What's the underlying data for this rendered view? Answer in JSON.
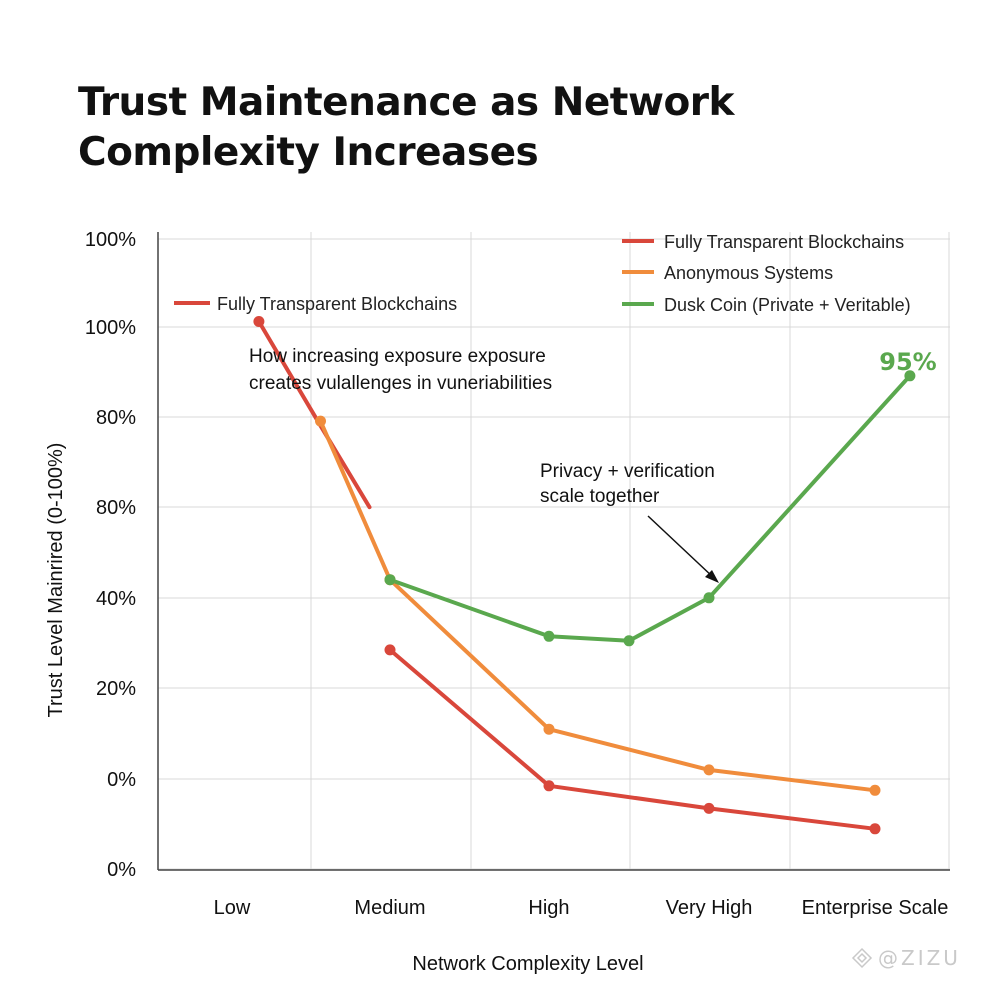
{
  "chart_data": {
    "type": "line",
    "title": "Trust Maintenance as Network Complexity Increases",
    "xlabel": "Network Complexity Level",
    "ylabel": "Trust Level Mainrired (0-100%)",
    "categories": [
      "Low",
      "Medium",
      "High",
      "Very High",
      "Enterprise Scale"
    ],
    "y_tick_labels": [
      "100%",
      "100%",
      "80%",
      "80%",
      "40%",
      "20%",
      "0%",
      "0%"
    ],
    "grid": true,
    "legend": {
      "placement": "top-right",
      "entries": [
        {
          "name": "Fully Transparent Blockchains",
          "color": "#d9473b"
        },
        {
          "name": "Anonymous Systems",
          "color": "#f08c3c"
        },
        {
          "name": "Dusk Coin (Private + Veritable)",
          "color": "#5aa84e"
        }
      ]
    },
    "extra_legend_label": {
      "name": "Fully Transparent Blockchains",
      "color": "#d9473b"
    },
    "series": [
      {
        "name": "Fully Transparent Blockchains",
        "color": "#d9473b",
        "segments": [
          {
            "points": [
              [
                0.17,
                101
              ],
              [
                0.56,
                78
              ],
              [
                0.87,
                60
              ]
            ],
            "markers": false,
            "first_marker": true
          },
          {
            "points": [
              [
                1.0,
                28.5
              ],
              [
                2.0,
                -1.5
              ],
              [
                3.0,
                -6.5
              ],
              [
                4.0,
                -11
              ]
            ],
            "markers": true
          }
        ]
      },
      {
        "name": "Anonymous Systems",
        "color": "#f08c3c",
        "segments": [
          {
            "points": [
              [
                0.56,
                79
              ],
              [
                1.0,
                44
              ],
              [
                2.0,
                11
              ],
              [
                3.0,
                2
              ],
              [
                4.0,
                -2.5
              ]
            ],
            "markers": true
          }
        ]
      },
      {
        "name": "Dusk Coin (Private + Veritable)",
        "color": "#5aa84e",
        "segments": [
          {
            "points": [
              [
                1.0,
                44
              ],
              [
                2.0,
                31.5
              ],
              [
                2.5,
                30.5
              ],
              [
                3.0,
                40
              ],
              [
                4.21,
                89
              ]
            ],
            "markers": true
          }
        ]
      }
    ],
    "annotations": [
      {
        "lines": [
          "How increasing exposure exposure",
          "creates vulallenges in vuneriabilities"
        ]
      },
      {
        "lines": [
          "Privacy + verification",
          "scale together"
        ],
        "arrow_to": [
          3.0,
          40
        ]
      },
      {
        "text": "95%",
        "color": "#5aa84e"
      }
    ]
  },
  "watermark": "@ZIZU",
  "watermark_icon": "diamond-logo-icon"
}
